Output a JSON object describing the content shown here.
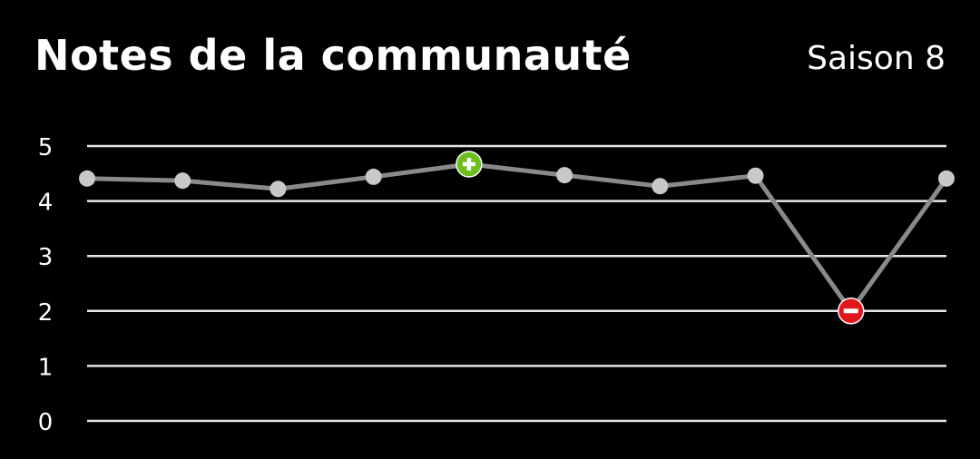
{
  "header": {
    "title": "Notes de la communauté",
    "season": "Saison 8"
  },
  "colors": {
    "line": "#8a8a8a",
    "point": "#c8c8c8",
    "grid": "#e6e6e6",
    "best": "#6cbf1c",
    "worst": "#e0161c"
  },
  "chart_data": {
    "type": "line",
    "title": "",
    "xlabel": "",
    "ylabel": "",
    "ylim": [
      0,
      5
    ],
    "yticks": [
      0,
      1,
      2,
      3,
      4,
      5
    ],
    "grid": true,
    "x": [
      1,
      2,
      3,
      4,
      5,
      6,
      7,
      8,
      9,
      10
    ],
    "values": [
      4.41,
      4.37,
      4.22,
      4.44,
      4.67,
      4.47,
      4.27,
      4.46,
      2.0,
      4.41
    ],
    "highlights": {
      "best_index": 4,
      "best_icon": "plus-icon",
      "worst_index": 8,
      "worst_icon": "minus-icon"
    }
  }
}
